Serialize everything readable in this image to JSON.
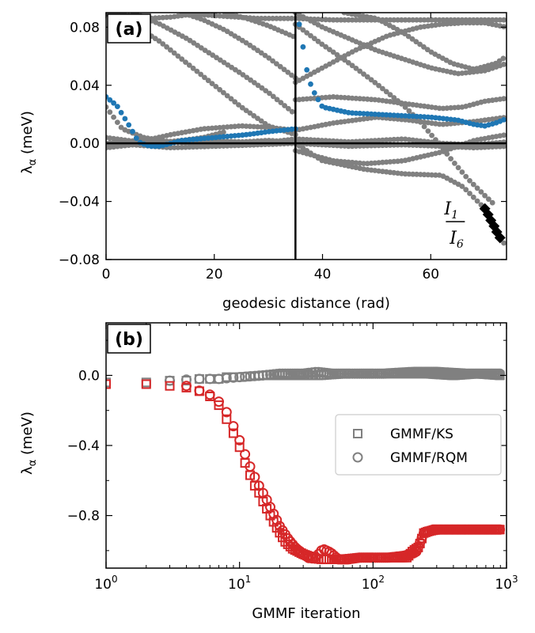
{
  "colors": {
    "gray": "#808080",
    "blue": "#1f77b4",
    "red": "#d62728",
    "black": "#000000"
  },
  "chart_data": [
    {
      "type": "scatter",
      "panel": "(a)",
      "xlabel": "geodesic distance (rad)",
      "ylabel": "λ_α (meV)",
      "ylabel_main": "λ",
      "ylabel_sub": "α",
      "ylabel_unit": " (meV)",
      "xlim": [
        0,
        74
      ],
      "ylim": [
        -0.08,
        0.09
      ],
      "xticks": [
        0,
        20,
        40,
        60
      ],
      "xtick_labels": [
        "0",
        "20",
        "40",
        "60"
      ],
      "yticks": [
        0.08,
        0.04,
        0.0,
        -0.04,
        -0.08
      ],
      "ytick_labels": [
        "0.08",
        "0.04",
        "0.00",
        "−0.04",
        "−0.08"
      ],
      "vline_x": 35,
      "hline_y": 0.0,
      "annotations": [
        {
          "main": "I",
          "sub": "1",
          "x": 62.5,
          "y": -0.049,
          "underline": true
        },
        {
          "main": "I",
          "sub": "6",
          "x": 63.5,
          "y": -0.069,
          "underline": false
        }
      ],
      "series": [
        {
          "name": "gray-1",
          "color": "gray",
          "x": [
            0,
            4,
            8,
            14,
            20,
            28,
            35,
            45,
            55,
            62,
            68,
            74
          ],
          "y": [
            0.0,
            0.001,
            0.0,
            0.002,
            0.001,
            0.0,
            0.003,
            0.001,
            0.003,
            0.0,
            -0.001,
            0.001
          ]
        },
        {
          "name": "gray-2",
          "color": "gray",
          "x": [
            0,
            5,
            12,
            20,
            28,
            35,
            45,
            55,
            62,
            68,
            74
          ],
          "y": [
            -0.002,
            -0.001,
            -0.003,
            -0.002,
            -0.001,
            0.0,
            -0.002,
            -0.001,
            -0.002,
            -0.003,
            -0.002
          ]
        },
        {
          "name": "gray-3",
          "color": "gray",
          "x": [
            0,
            6,
            12,
            20,
            28,
            35,
            40,
            48,
            55,
            62,
            66,
            70,
            74
          ],
          "y": [
            0.0,
            0.002,
            0.001,
            -0.001,
            0.001,
            0.0,
            -0.012,
            -0.018,
            -0.021,
            -0.022,
            -0.03,
            -0.045,
            -0.072
          ]
        },
        {
          "name": "gray-4",
          "color": "gray",
          "x": [
            0,
            6,
            12,
            18,
            25,
            30,
            35,
            42,
            50,
            56,
            62,
            68,
            74
          ],
          "y": [
            0.004,
            0.001,
            0.006,
            0.01,
            0.012,
            0.011,
            0.009,
            0.014,
            0.018,
            0.016,
            0.013,
            0.015,
            0.018
          ]
        },
        {
          "name": "gray-5",
          "color": "gray",
          "x": [
            0,
            3,
            7,
            12,
            18,
            22
          ],
          "y": [
            0.025,
            0.01,
            0.004,
            0.001,
            0.004,
            0.008
          ]
        },
        {
          "name": "gray-6",
          "color": "gray",
          "x": [
            0,
            5,
            10,
            15,
            20,
            25,
            30,
            35
          ],
          "y": [
            0.089,
            0.082,
            0.07,
            0.055,
            0.04,
            0.025,
            0.012,
            0.006
          ]
        },
        {
          "name": "gray-7",
          "color": "gray",
          "x": [
            5,
            10,
            15,
            20,
            25,
            30,
            35
          ],
          "y": [
            0.09,
            0.082,
            0.072,
            0.06,
            0.048,
            0.035,
            0.02
          ]
        },
        {
          "name": "gray-8",
          "color": "gray",
          "x": [
            14,
            18,
            22,
            26,
            30,
            35
          ],
          "y": [
            0.09,
            0.085,
            0.078,
            0.069,
            0.059,
            0.045
          ]
        },
        {
          "name": "gray-9",
          "color": "gray",
          "x": [
            22,
            26,
            30,
            35
          ],
          "y": [
            0.09,
            0.086,
            0.081,
            0.073
          ]
        },
        {
          "name": "gray-10",
          "color": "gray",
          "x": [
            0,
            4,
            8,
            12,
            16,
            20,
            24,
            28,
            35,
            42,
            48,
            55,
            62,
            70,
            74
          ],
          "y": [
            0.09,
            0.088,
            0.086,
            0.087,
            0.089,
            0.088,
            0.087,
            0.086,
            0.086,
            0.085,
            0.085,
            0.085,
            0.085,
            0.085,
            0.085
          ]
        },
        {
          "name": "gray-11",
          "color": "gray",
          "x": [
            35,
            40,
            46,
            52,
            58,
            62,
            66,
            70,
            74
          ],
          "y": [
            0.042,
            0.052,
            0.064,
            0.074,
            0.08,
            0.082,
            0.083,
            0.083,
            0.08
          ]
        },
        {
          "name": "gray-12",
          "color": "gray",
          "x": [
            35,
            40,
            45,
            50,
            55,
            60,
            65,
            70,
            74
          ],
          "y": [
            0.09,
            0.08,
            0.072,
            0.064,
            0.058,
            0.052,
            0.048,
            0.05,
            0.055
          ]
        },
        {
          "name": "gray-13",
          "color": "gray",
          "x": [
            44,
            50,
            55,
            60,
            64,
            68,
            72,
            74
          ],
          "y": [
            0.09,
            0.086,
            0.076,
            0.063,
            0.055,
            0.051,
            0.055,
            0.06
          ]
        },
        {
          "name": "gray-14",
          "color": "gray",
          "x": [
            35,
            42,
            50,
            56,
            62,
            66,
            70,
            74
          ],
          "y": [
            0.03,
            0.032,
            0.03,
            0.027,
            0.024,
            0.025,
            0.029,
            0.031
          ]
        },
        {
          "name": "gray-15",
          "color": "gray",
          "x": [
            35,
            40,
            45,
            50,
            55,
            58,
            61,
            64,
            67,
            70,
            72
          ],
          "y": [
            0.082,
            0.068,
            0.055,
            0.041,
            0.026,
            0.015,
            0.002,
            -0.012,
            -0.025,
            -0.036,
            -0.043
          ]
        },
        {
          "name": "gray-16",
          "color": "gray",
          "x": [
            35,
            38,
            42,
            48,
            55,
            62,
            68,
            74
          ],
          "y": [
            -0.005,
            -0.008,
            -0.012,
            -0.014,
            -0.012,
            -0.006,
            0.002,
            0.006
          ]
        },
        {
          "name": "gray-17",
          "color": "gray",
          "x": [
            0,
            5,
            10,
            18,
            25,
            30,
            35
          ],
          "y": [
            -0.003,
            -0.001,
            0.001,
            0.002,
            0.001,
            0.002,
            0.001
          ]
        },
        {
          "name": "blue",
          "color": "blue",
          "x": [
            0,
            2,
            4,
            6,
            8,
            10,
            14,
            20,
            26,
            30,
            35,
            35.5,
            36,
            36.5,
            37,
            38,
            40,
            45,
            50,
            55,
            60,
            65,
            68,
            70,
            72,
            74
          ],
          "y": [
            0.032,
            0.026,
            0.014,
            0.001,
            -0.002,
            -0.002,
            0.002,
            0.004,
            0.006,
            0.008,
            0.01,
            0.086,
            0.076,
            0.064,
            0.052,
            0.038,
            0.025,
            0.021,
            0.02,
            0.019,
            0.018,
            0.016,
            0.013,
            0.012,
            0.014,
            0.017
          ]
        }
      ],
      "markers": {
        "color": "black",
        "shape": "diamond",
        "x": [
          70.0,
          70.6,
          71.1,
          71.7,
          72.2,
          72.8
        ],
        "y": [
          -0.045,
          -0.049,
          -0.053,
          -0.057,
          -0.061,
          -0.065
        ]
      }
    },
    {
      "type": "scatter",
      "panel": "(b)",
      "xlabel": "GMMF iteration",
      "ylabel": "λ_α (meV)",
      "ylabel_main": "λ",
      "ylabel_sub": "α",
      "ylabel_unit": " (meV)",
      "xscale": "log",
      "xlim": [
        1,
        1000
      ],
      "ylim": [
        -1.1,
        0.3
      ],
      "xticks": [
        1,
        10,
        100,
        1000
      ],
      "xtick_base": [
        "10",
        "10",
        "10",
        "10"
      ],
      "xtick_exp": [
        "0",
        "1",
        "2",
        "3"
      ],
      "yticks": [
        0.0,
        -0.4,
        -0.8
      ],
      "ytick_labels": [
        "0.0",
        "−0.4",
        "−0.8"
      ],
      "legend": {
        "position": "center-right",
        "entries": [
          {
            "label": "GMMF/KS",
            "marker": "square"
          },
          {
            "label": "GMMF/RQM",
            "marker": "circle"
          }
        ]
      },
      "series": [
        {
          "name": "KS-gray",
          "color": "gray",
          "marker": "square",
          "x": [
            1,
            2,
            3,
            4,
            5,
            6,
            7,
            8,
            10,
            15,
            20,
            30,
            40,
            60,
            100,
            150,
            250,
            400,
            600,
            900
          ],
          "y": [
            -0.04,
            -0.04,
            -0.03,
            -0.03,
            -0.02,
            -0.02,
            -0.02,
            -0.01,
            -0.01,
            0.0,
            0.0,
            0.0,
            0.0,
            0.01,
            0.01,
            0.01,
            0.01,
            0.0,
            0.01,
            0.0
          ]
        },
        {
          "name": "RQM-gray",
          "color": "gray",
          "marker": "circle",
          "x": [
            3,
            5,
            7,
            10,
            15,
            20,
            30,
            38,
            50,
            80,
            120,
            200,
            300,
            500,
            900
          ],
          "y": [
            -0.03,
            -0.02,
            -0.02,
            -0.01,
            0.0,
            0.01,
            0.01,
            0.02,
            0.01,
            0.01,
            0.01,
            0.02,
            0.02,
            0.01,
            0.01
          ]
        },
        {
          "name": "KS-red",
          "color": "red",
          "marker": "square",
          "x": [
            1,
            2,
            3,
            4,
            5,
            6,
            7,
            8,
            9,
            10,
            11,
            12,
            13,
            14,
            15,
            17,
            19,
            22,
            25,
            30,
            35,
            40,
            50,
            60,
            80,
            100,
            120,
            150,
            180,
            200,
            220,
            240,
            260,
            300,
            400,
            600,
            900
          ],
          "y": [
            -0.05,
            -0.05,
            -0.06,
            -0.07,
            -0.09,
            -0.12,
            -0.17,
            -0.25,
            -0.33,
            -0.41,
            -0.5,
            -0.57,
            -0.63,
            -0.67,
            -0.72,
            -0.8,
            -0.87,
            -0.95,
            -0.99,
            -1.02,
            -1.04,
            -1.05,
            -1.05,
            -1.05,
            -1.04,
            -1.04,
            -1.04,
            -1.04,
            -1.04,
            -1.0,
            -0.98,
            -0.9,
            -0.89,
            -0.88,
            -0.88,
            -0.88,
            -0.88
          ]
        },
        {
          "name": "RQM-red",
          "color": "red",
          "marker": "circle",
          "x": [
            4,
            6,
            7,
            8,
            9,
            10,
            11,
            12,
            13,
            14,
            16,
            18,
            20,
            23,
            26,
            30,
            34,
            38,
            42,
            48,
            55,
            65,
            80,
            100,
            130,
            170,
            210,
            240,
            280,
            350,
            500,
            700,
            900
          ],
          "y": [
            -0.06,
            -0.11,
            -0.15,
            -0.21,
            -0.29,
            -0.37,
            -0.45,
            -0.52,
            -0.58,
            -0.63,
            -0.71,
            -0.79,
            -0.86,
            -0.93,
            -0.98,
            -1.02,
            -1.05,
            -1.03,
            -0.99,
            -1.01,
            -1.05,
            -1.05,
            -1.04,
            -1.04,
            -1.04,
            -1.03,
            -1.01,
            -0.9,
            -0.88,
            -0.88,
            -0.88,
            -0.88,
            -0.88
          ]
        }
      ]
    }
  ]
}
